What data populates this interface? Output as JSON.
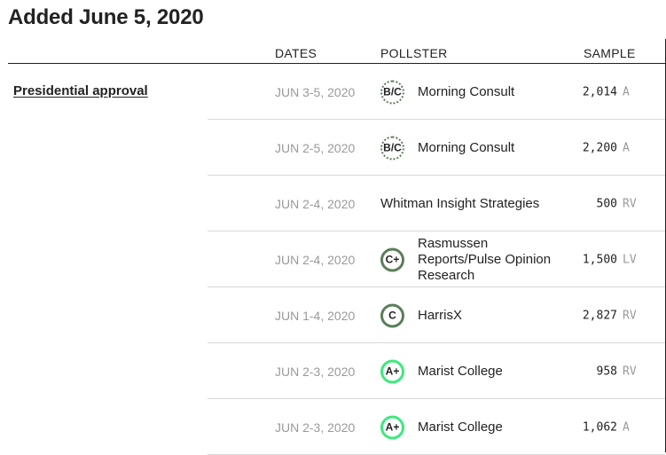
{
  "page": {
    "title": "Added June 5, 2020"
  },
  "columns": {
    "dates": "DATES",
    "pollster": "POLLSTER",
    "sample": "SAMPLE"
  },
  "section": {
    "label": "Presidential approval"
  },
  "rows": [
    {
      "dates": "JUN 3-5, 2020",
      "grade": "B/C",
      "grade_style": "dotted",
      "pollster": "Morning Consult",
      "sample": "2,014",
      "population": "A"
    },
    {
      "dates": "JUN 2-5, 2020",
      "grade": "B/C",
      "grade_style": "dotted",
      "pollster": "Morning Consult",
      "sample": "2,200",
      "population": "A"
    },
    {
      "dates": "JUN 2-4, 2020",
      "grade": "",
      "grade_style": "none",
      "pollster": "Whitman Insight Strategies",
      "sample": "500",
      "population": "RV"
    },
    {
      "dates": "JUN 2-4, 2020",
      "grade": "C+",
      "grade_style": "solid-c",
      "pollster": "Rasmussen Reports/Pulse Opinion Research",
      "sample": "1,500",
      "population": "LV"
    },
    {
      "dates": "JUN 1-4, 2020",
      "grade": "C",
      "grade_style": "solid-c",
      "pollster": "HarrisX",
      "sample": "2,827",
      "population": "RV"
    },
    {
      "dates": "JUN 2-3, 2020",
      "grade": "A+",
      "grade_style": "solid-a",
      "pollster": "Marist College",
      "sample": "958",
      "population": "RV"
    },
    {
      "dates": "JUN 2-3, 2020",
      "grade": "A+",
      "grade_style": "solid-a",
      "pollster": "Marist College",
      "sample": "1,062",
      "population": "A"
    }
  ]
}
